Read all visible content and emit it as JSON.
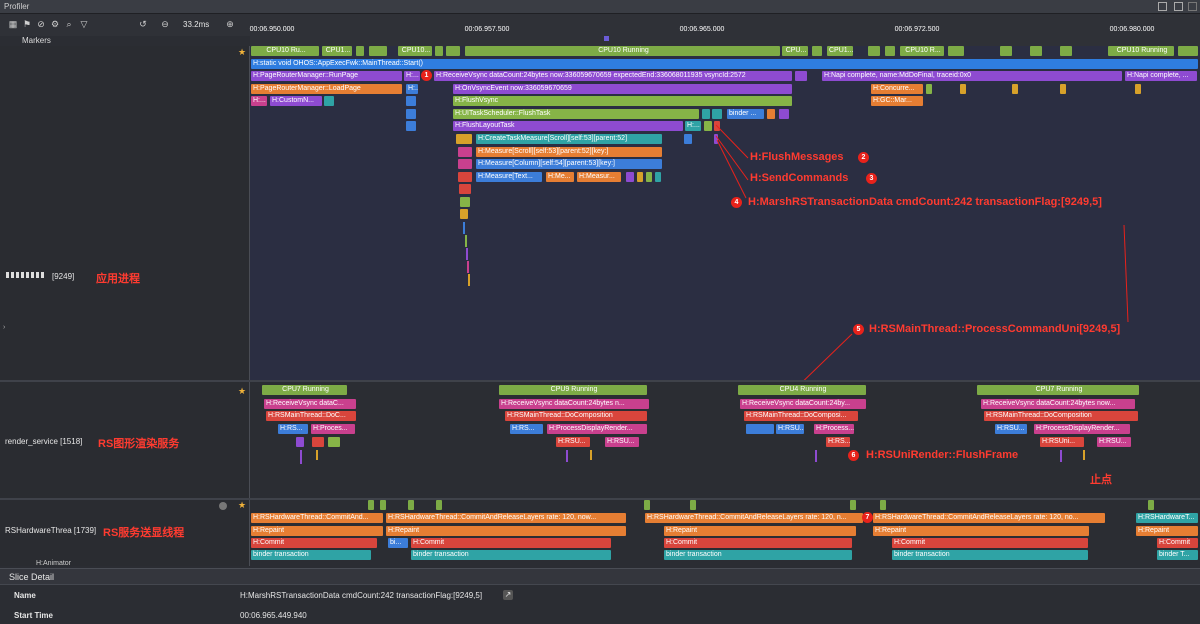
{
  "window": {
    "title": "Profiler"
  },
  "toolbar": {
    "zoom_value": "33.2ms"
  },
  "ruler": {
    "ticks": [
      "00:06.950.000",
      "00:06.957.500",
      "00:06.965.000",
      "00:06.972.500",
      "00:06.980.000"
    ]
  },
  "markers": {
    "label": "Markers"
  },
  "app_process": {
    "name": "[9249]",
    "annotation": "应用进程",
    "cpu_slices": [
      "CPU10 Ru...",
      "CPU1...",
      "CPU10...",
      "CPU10 Running",
      "CPU...",
      "CPU1...",
      "CPU10 R...",
      "CPU10 Running"
    ],
    "main_thread": "H:static void OHOS::AppExecFwk::MainThread::Start()",
    "slices": {
      "run_page": "H:PageRouterManager::RunPage",
      "h_short": "H:...",
      "receive_vsync": "H:ReceiveVsync dataCount:24bytes now:336059670659 expectedEnd:336068011935 vsyncId:2572",
      "napi_complete": "H:Napi complete, name:MdDoFinal, traceid:0x0",
      "napi_complete_2": "H:Napi complete, ...",
      "load_page": "H:PageRouterManager::LoadPage",
      "on_vsync": "H:OnVsyncEvent now:336059670659",
      "concurrent": "H:Concurre...",
      "custom_n": "H:CustomN...",
      "h_small": "H:...",
      "flush_vsync": "H:FlushVsync",
      "gc_mar": "H:GC::Mar...",
      "flush_task": "H:UITaskScheduler::FlushTask",
      "binder": "binder ...",
      "flush_layout": "H:FlushLayoutTask",
      "h_layout_extra": "H:...",
      "create_task_measure": "H:CreateTaskMeasure[Scroll][self:53][parent:52]",
      "measure_scroll": "H:Measure[Scroll][self:53][parent:52][key:]",
      "measure_column": "H:Measure[Column][self:54][parent:53][key:]",
      "measure_text": "H:Measure[Text...",
      "me": "H:Me...",
      "measur": "H:Measur..."
    }
  },
  "annotations": [
    {
      "num": "1",
      "text": ""
    },
    {
      "num": "2",
      "text": "H:FlushMessages"
    },
    {
      "num": "3",
      "text": "H:SendCommands"
    },
    {
      "num": "4",
      "text": "H:MarshRSTransactionData cmdCount:242 transactionFlag:[9249,5]"
    },
    {
      "num": "5",
      "text": "H:RSMainThread::ProcessCommandUni[9249,5]"
    },
    {
      "num": "6",
      "text": "H:RSUniRender::FlushFrame"
    },
    {
      "num": "7",
      "text": ""
    },
    {
      "num": "",
      "text": "止点"
    }
  ],
  "render_service": {
    "name": "render_service [1518]",
    "annotation": "RS图形渲染服务",
    "groups": [
      {
        "cpu": "CPU7 Running",
        "vsync": "H:ReceiveVsync dataC...",
        "comp": "H:RSMainThread::DoC...",
        "a": "H:RS...",
        "b": "H:Proces..."
      },
      {
        "cpu": "CPU9 Running",
        "vsync": "H:ReceiveVsync dataCount:24bytes n...",
        "comp": "H:RSMainThread::DoComposition",
        "a": "H:RS...",
        "b": "H:ProcessDisplayRender...",
        "c": "H:RSU...",
        "d": "H:RSU..."
      },
      {
        "cpu": "CPU4 Running",
        "vsync": "H:ReceiveVsync dataCount:24by...",
        "comp": "H:RSMainThread::DoComposi...",
        "a": "H:RSU...",
        "b": "H:Process...",
        "c": "H:RS..."
      },
      {
        "cpu": "CPU7 Running",
        "vsync": "H:ReceiveVsync dataCount:24bytes now...",
        "comp": "H:RSMainThread::DoComposition",
        "a": "H:RSU...",
        "b": "H:ProcessDisplayRender...",
        "c": "H:RSUni...",
        "d": "H:RSU..."
      }
    ]
  },
  "rs_hardware": {
    "name": "RSHardwareThrea [1739]",
    "annotation": "RS服务送显线程",
    "slices": {
      "commit_short": "H:RSHardwareThread::CommitAnd...",
      "commit_long": "H:RSHardwareThread::CommitAndReleaseLayers rate: 120, now...",
      "commit_long2": "H:RSHardwareThread::CommitAndReleaseLayers rate: 120, n...",
      "commit_long3": "H:RSHardwareThread::CommitAndReleaseLayers rate: 120, no...",
      "commit_tail": "H:RSHardwareT...",
      "repaint": "H:Repaint",
      "commit": "H:Commit",
      "bi": "bi...",
      "binder": "binder transaction",
      "binder_t": "binder T..."
    },
    "next_thread": "H:Animator"
  },
  "slice_detail": {
    "header": "Slice Detail",
    "rows": [
      {
        "key": "Name",
        "value": "H:MarshRSTransactionData cmdCount:242 transactionFlag:[9249,5]"
      },
      {
        "key": "Start Time",
        "value": "00:06.965.449.940"
      }
    ]
  }
}
